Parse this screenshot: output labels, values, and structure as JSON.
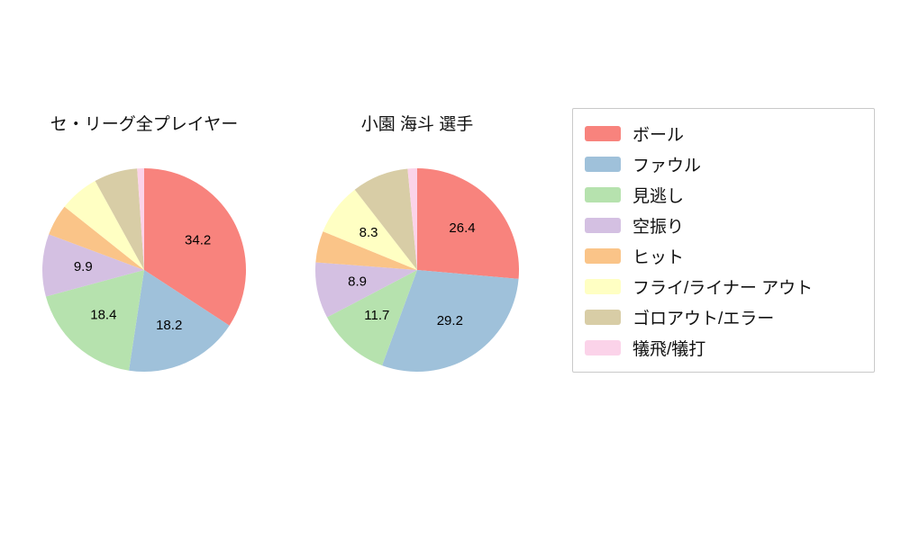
{
  "figure": {
    "background": "#ffffff"
  },
  "palette": [
    "#f8837d",
    "#9fc1da",
    "#b6e2ae",
    "#d4c0e2",
    "#fac488",
    "#ffffc3",
    "#d8cda6",
    "#fbd3e9"
  ],
  "legend": {
    "items": [
      "ボール",
      "ファウル",
      "見逃し",
      "空振り",
      "ヒット",
      "フライ/ライナー アウト",
      "ゴロアウト/エラー",
      "犠飛/犠打"
    ]
  },
  "chart_data": [
    {
      "type": "pie",
      "title": "セ・リーグ全プレイヤー",
      "labels": [
        "ボール",
        "ファウル",
        "見逃し",
        "空振り",
        "ヒット",
        "フライ/ライナー アウト",
        "ゴロアウト/エラー",
        "犠飛/犠打"
      ],
      "values": [
        34.2,
        18.2,
        18.4,
        9.9,
        5.0,
        6.3,
        6.9,
        1.1
      ],
      "display_labels": [
        "34.2",
        "18.2",
        "18.4",
        "9.9",
        "",
        "",
        "",
        ""
      ],
      "start_angle": "top",
      "direction": "clockwise",
      "legend_position": "right"
    },
    {
      "type": "pie",
      "title": "小園 海斗 選手",
      "labels": [
        "ボール",
        "ファウル",
        "見逃し",
        "空振り",
        "ヒット",
        "フライ/ライナー アウト",
        "ゴロアウト/エラー",
        "犠飛/犠打"
      ],
      "values": [
        26.4,
        29.2,
        11.7,
        8.9,
        5.0,
        8.3,
        9.0,
        1.5
      ],
      "display_labels": [
        "26.4",
        "29.2",
        "11.7",
        "8.9",
        "",
        "8.3",
        "",
        ""
      ],
      "start_angle": "top",
      "direction": "clockwise",
      "legend_position": "right"
    }
  ]
}
